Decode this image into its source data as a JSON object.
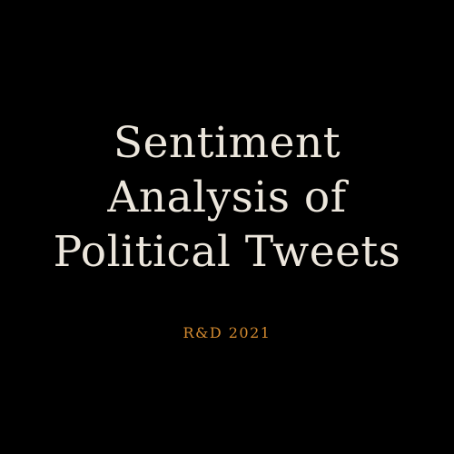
{
  "cover": {
    "title_lines": [
      "Sentiment",
      "Analysis of",
      "Political Tweets"
    ],
    "subtitle": "R&D 2021"
  },
  "colors": {
    "background": "#000000",
    "title": "#ece6dc",
    "subtitle": "#d2892f"
  }
}
